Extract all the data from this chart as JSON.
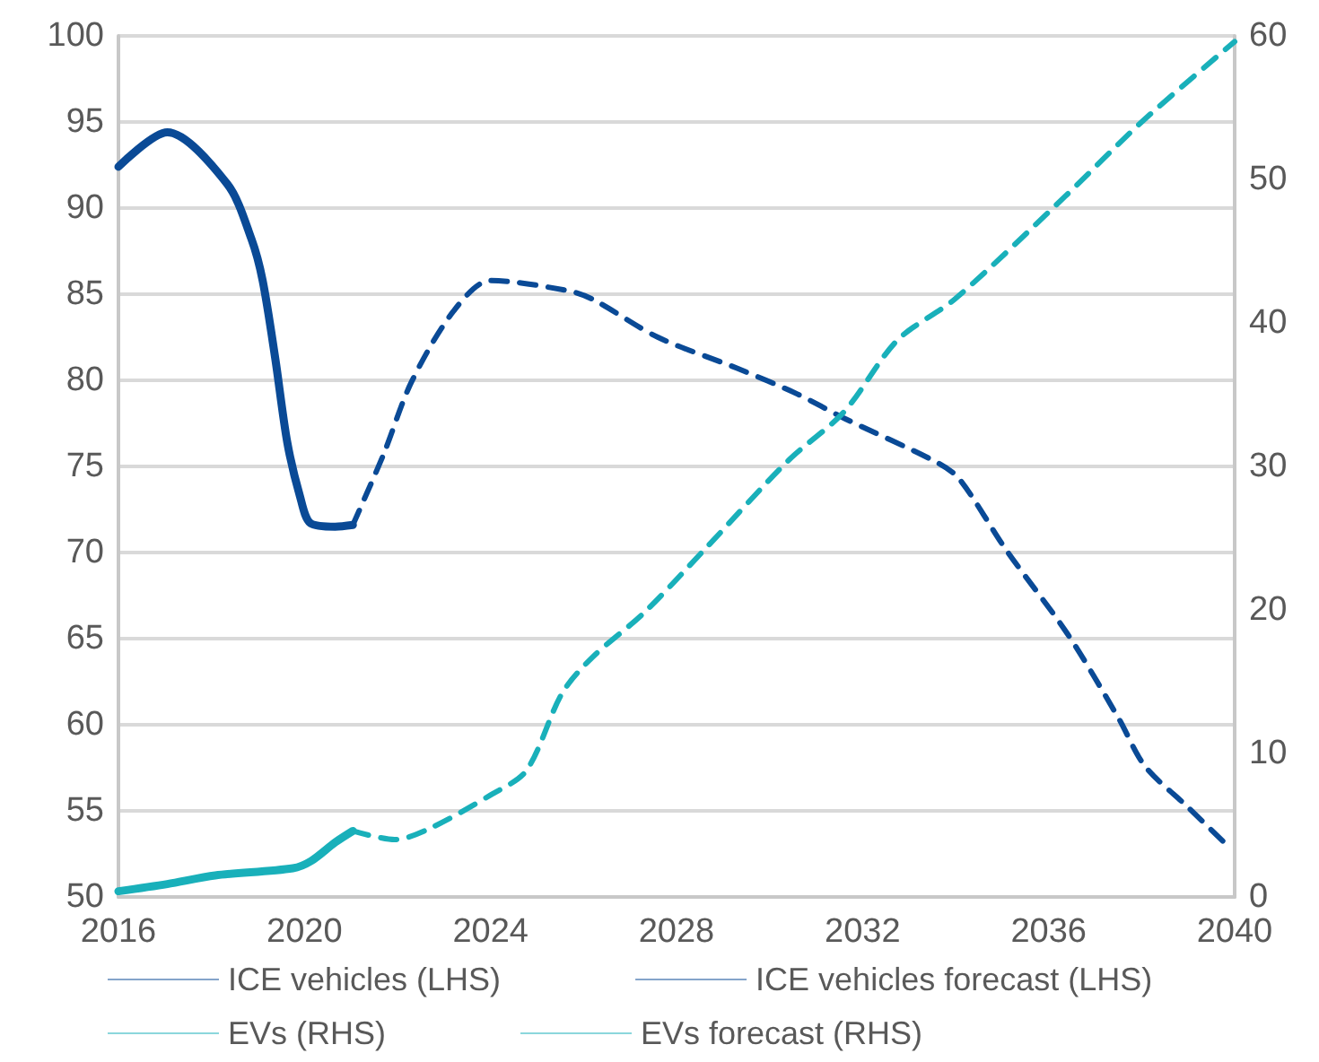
{
  "chart_data": {
    "type": "line",
    "xlim": [
      2016,
      2040
    ],
    "xticks": [
      2016,
      2020,
      2024,
      2028,
      2032,
      2036,
      2040
    ],
    "ylim": [
      50,
      100
    ],
    "yticks": [
      50,
      55,
      60,
      65,
      70,
      75,
      80,
      85,
      90,
      95,
      100
    ],
    "y2lim": [
      0,
      60
    ],
    "y2ticks": [
      0,
      10,
      20,
      30,
      40,
      50,
      60
    ],
    "grid": "y",
    "legend": "bottom",
    "marker": "none",
    "series": [
      {
        "name": "ICE vehicles (LHS)",
        "color": "#0a4a96",
        "line_style": "solid",
        "x": [
          2016,
          2017.05,
          2018.34,
          2018.86,
          2019.1,
          2019.37,
          2019.63,
          2019.9,
          2020.13,
          2020.66,
          2021.04
        ],
        "values": [
          92.4,
          94.4,
          91.4,
          88.2,
          85.8,
          81.3,
          76.4,
          73.3,
          71.7,
          71.5,
          71.6
        ]
      },
      {
        "name": "ICE vehicles forecast (LHS)",
        "color": "#0a4a96",
        "line_style": "dashed",
        "x": [
          2021.04,
          2021.7,
          2022.3,
          2023.2,
          2024,
          2025.67,
          2026.2,
          2027.6,
          2029.3,
          2030.6,
          2031.6,
          2033.55,
          2034.07,
          2035.1,
          2036.4,
          2037.5,
          2038.07,
          2039,
          2039.8
        ],
        "values": [
          71.6,
          75.7,
          79.9,
          84,
          85.8,
          85.2,
          84.7,
          82.5,
          80.7,
          79.2,
          77.8,
          75.3,
          74.3,
          70.1,
          65.3,
          60.4,
          57.6,
          55.2,
          53.1
        ]
      },
      {
        "name": "EVs (RHS)",
        "color": "#19b0ba",
        "line_style": "solid",
        "axis": "y2",
        "x": [
          2016,
          2017.05,
          2018.08,
          2019.75,
          2020.14,
          2020.66,
          2021.04
        ],
        "values": [
          0.4,
          0.9,
          1.5,
          2,
          2.5,
          3.8,
          4.6
        ]
      },
      {
        "name": "EVs forecast (RHS)",
        "color": "#19b0ba",
        "line_style": "dashed",
        "axis": "y2",
        "x": [
          2021.04,
          2021.94,
          2022.71,
          2024,
          2024.77,
          2025.54,
          2026.19,
          2027.3,
          2028.6,
          2030.4,
          2031.6,
          2032.75,
          2034,
          2036.35,
          2038,
          2040
        ],
        "values": [
          4.6,
          4,
          4.8,
          7.1,
          8.8,
          14.2,
          16.7,
          19.8,
          24.2,
          30.4,
          33.8,
          38.8,
          41.7,
          48.8,
          54,
          59.6
        ]
      }
    ]
  }
}
